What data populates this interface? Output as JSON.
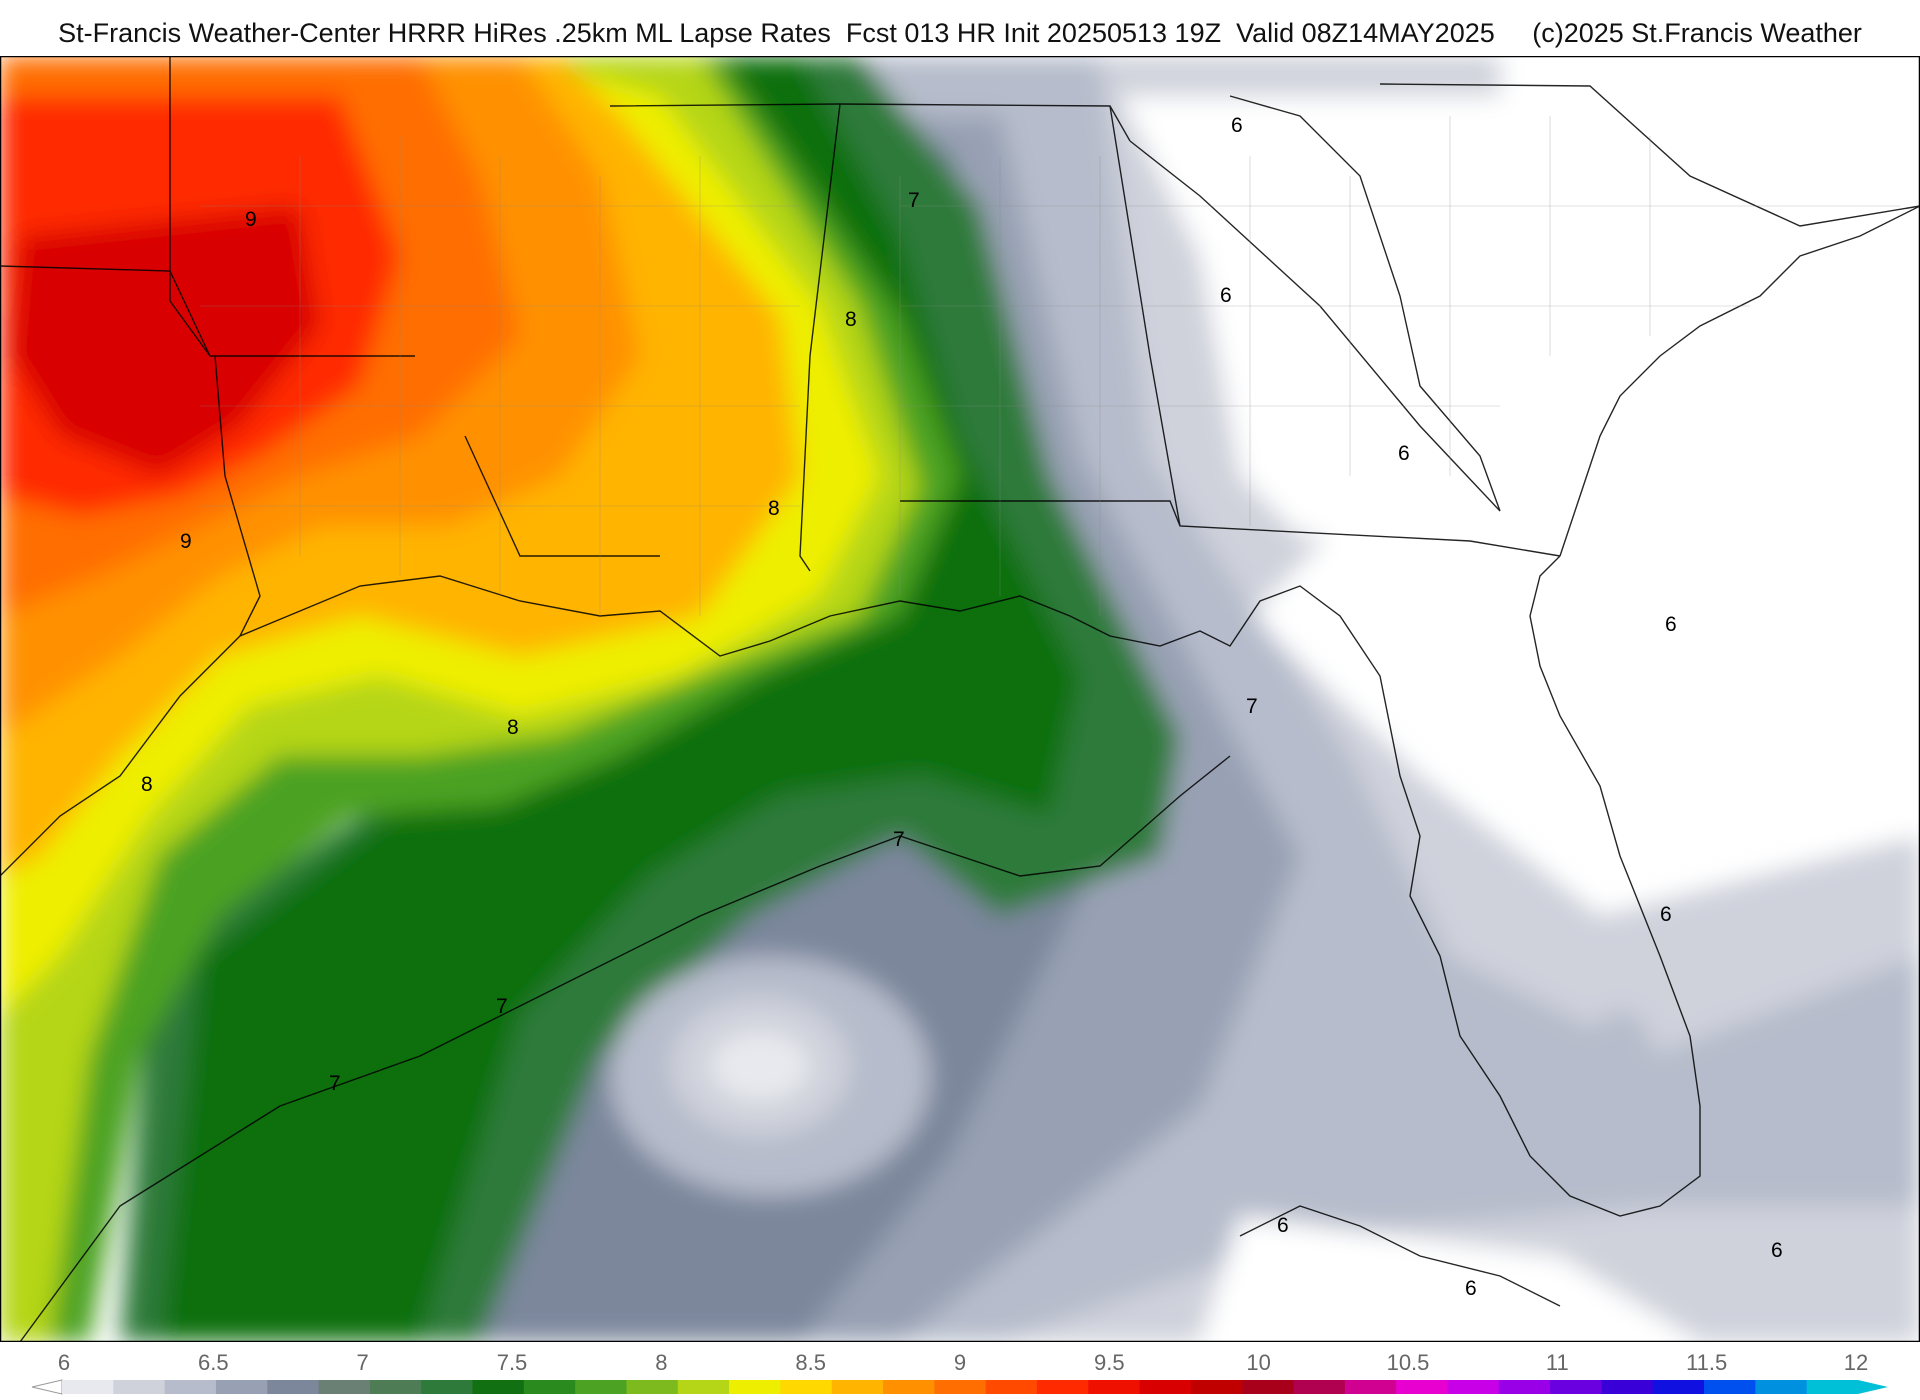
{
  "header": {
    "title": "St-Francis Weather-Center HRRR HiRes .25km ML Lapse Rates  Fcst 013 HR Init 20250513 19Z  Valid 08Z14MAY2025     (c)2025 St.Francis Weather"
  },
  "map": {
    "contour_labels": [
      "9",
      "9",
      "8",
      "8",
      "8",
      "8",
      "7",
      "7",
      "7",
      "7",
      "7",
      "6",
      "6",
      "6",
      "6",
      "6",
      "6",
      "6",
      "6"
    ]
  },
  "colorbar": {
    "ticks": [
      "6",
      "6.5",
      "7",
      "7.5",
      "8",
      "8.5",
      "9",
      "9.5",
      "10",
      "10.5",
      "11",
      "11.5",
      "12"
    ],
    "colors": [
      "#e8e9ee",
      "#cfd2db",
      "#b6bccb",
      "#98a1b4",
      "#7c879c",
      "#6b8075",
      "#4e7d55",
      "#2e7a3a",
      "#117011",
      "#2a8a1e",
      "#4ca222",
      "#7cba1e",
      "#b5d616",
      "#eeee00",
      "#ffd800",
      "#ffb400",
      "#ff9100",
      "#ff6e00",
      "#ff4a00",
      "#ff2a00",
      "#f01000",
      "#d80000",
      "#c00000",
      "#a8001a",
      "#b00050",
      "#d00090",
      "#e800d0",
      "#c800e8",
      "#9a00e8",
      "#6a00e0",
      "#3a00d8",
      "#1010e0",
      "#0050f0",
      "#0090e0",
      "#00c0d8"
    ]
  }
}
